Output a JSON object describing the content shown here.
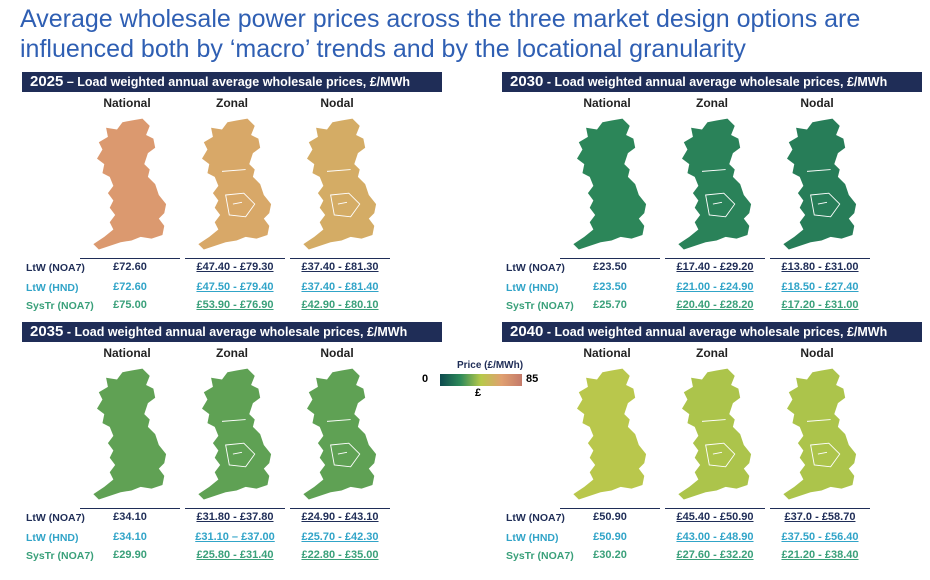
{
  "page": {
    "title": "Average wholesale power prices across the three market design options are influenced both by ‘macro’ trends and by the locational granularity"
  },
  "legend": {
    "title": "Price (£/MWh)",
    "min": "0",
    "max": "85",
    "symbol": "£"
  },
  "colors": {
    "header_bg": "#1f2d57",
    "ltw_noa7": "#1f2d57",
    "ltw_hnd": "#31a4c8",
    "systr_noa7": "#3aa07a"
  },
  "chart_data": [
    {
      "type": "table",
      "year": "2025",
      "header": " – Load weighted annual average wholesale prices, £/MWh",
      "columns": [
        "National",
        "Zonal",
        "Nodal"
      ],
      "map_price_level": [
        72.6,
        66,
        64
      ],
      "rows": [
        {
          "label": "LtW (NOA7)",
          "values": [
            "£72.60",
            "£47.40 - £79.30",
            "£37.40 - £81.30"
          ]
        },
        {
          "label": "LtW (HND)",
          "values": [
            "£72.60",
            "£47.50 - £79.40",
            "£37.40 - £81.40"
          ]
        },
        {
          "label": "SysTr (NOA7)",
          "values": [
            "£75.00",
            "£53.90 - £76.90",
            "£42.90 - £80.10"
          ]
        }
      ]
    },
    {
      "type": "table",
      "year": "2030",
      "header": " - Load weighted annual average wholesale prices, £/MWh",
      "columns": [
        "National",
        "Zonal",
        "Nodal"
      ],
      "map_price_level": [
        23.5,
        22,
        20
      ],
      "rows": [
        {
          "label": "LtW (NOA7)",
          "values": [
            "£23.50",
            "£17.40 - £29.20",
            "£13.80 - £31.00"
          ]
        },
        {
          "label": "LtW (HND)",
          "values": [
            "£23.50",
            "£21.00 - £24.90",
            "£18.50 - £27.40"
          ]
        },
        {
          "label": "SysTr (NOA7)",
          "values": [
            "£25.70",
            "£20.40 - £28.20",
            "£17.20 - £31.00"
          ]
        }
      ]
    },
    {
      "type": "table",
      "year": "2035",
      "header": " - Load weighted annual average wholesale prices, £/MWh",
      "columns": [
        "National",
        "Zonal",
        "Nodal"
      ],
      "map_price_level": [
        34.1,
        34,
        34
      ],
      "rows": [
        {
          "label": "LtW (NOA7)",
          "values": [
            "£34.10",
            "£31.80 - £37.80",
            "£24.90 - £43.10"
          ]
        },
        {
          "label": "LtW (HND)",
          "values": [
            "£34.10",
            "£31.10 – £37.00",
            "£25.70 - £42.30"
          ]
        },
        {
          "label": "SysTr (NOA7)",
          "values": [
            "£29.90",
            "£25.80 - £31.40",
            "£22.80 - £35.00"
          ]
        }
      ]
    },
    {
      "type": "table",
      "year": "2040",
      "header": " - Load weighted annual average wholesale prices, £/MWh",
      "columns": [
        "National",
        "Zonal",
        "Nodal"
      ],
      "map_price_level": [
        50.9,
        48,
        48
      ],
      "rows": [
        {
          "label": "LtW (NOA7)",
          "values": [
            "£50.90",
            "£45.40 - £50.90",
            "£37.0 - £58.70"
          ]
        },
        {
          "label": "LtW (HND)",
          "values": [
            "£50.90",
            "£43.00 - £48.90",
            "£37.50 - £56.40"
          ]
        },
        {
          "label": "SysTr (NOA7)",
          "values": [
            "£30.20",
            "£27.60 - £32.20",
            "£21.20 - £38.40"
          ]
        }
      ]
    }
  ]
}
